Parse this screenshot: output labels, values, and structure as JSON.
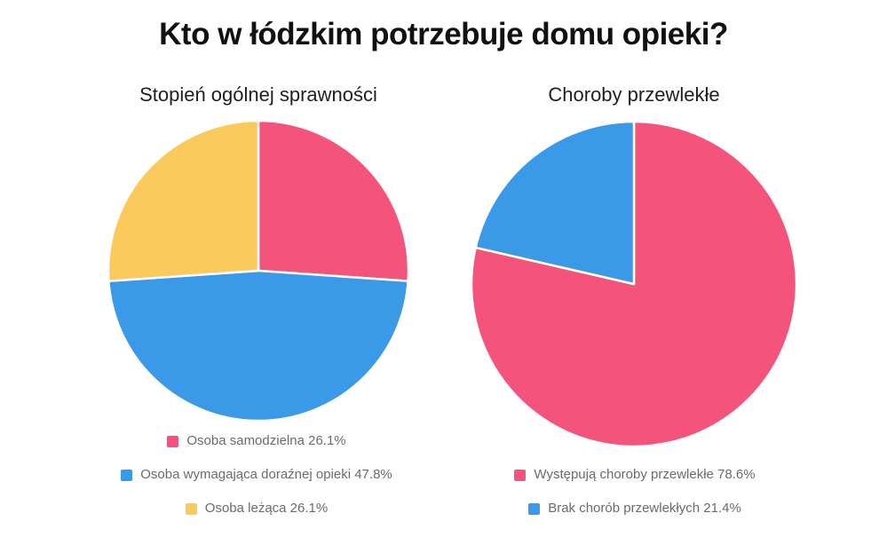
{
  "page": {
    "title": "Kto w łódzkim potrzebuje domu opieki?",
    "background_color": "#ffffff",
    "title_color": "#111111",
    "legend_text_color": "#6b6b6b"
  },
  "chart_data": [
    {
      "type": "pie",
      "title": "Stopień ogólnej sprawności",
      "labels": [
        "Osoba samodzielna",
        "Osoba wymagająca doraźnej opieki",
        "Osoba leżąca"
      ],
      "values": [
        26.1,
        47.8,
        26.1
      ],
      "colors": [
        "#f4547c",
        "#3b9ae8",
        "#fbca5c"
      ],
      "unit": "%",
      "start_angle_deg": 0,
      "direction": "clockwise",
      "slice_border_color": "#ffffff",
      "legend_position": "bottom",
      "legend_entries": [
        "Osoba samodzielna 26.1%",
        "Osoba wymagająca doraźnej opieki 47.8%",
        "Osoba leżąca 26.1%"
      ]
    },
    {
      "type": "pie",
      "title": "Choroby przewlekłe",
      "labels": [
        "Występują choroby przewlekłe",
        "Brak chorób przewlekłych"
      ],
      "values": [
        78.6,
        21.4
      ],
      "colors": [
        "#f4547c",
        "#3b9ae8"
      ],
      "unit": "%",
      "start_angle_deg": 0,
      "direction": "clockwise",
      "slice_border_color": "#ffffff",
      "legend_position": "bottom",
      "legend_entries": [
        "Występują choroby przewlekłe 78.6%",
        "Brak chorób przewlekłych 21.4%"
      ]
    }
  ]
}
